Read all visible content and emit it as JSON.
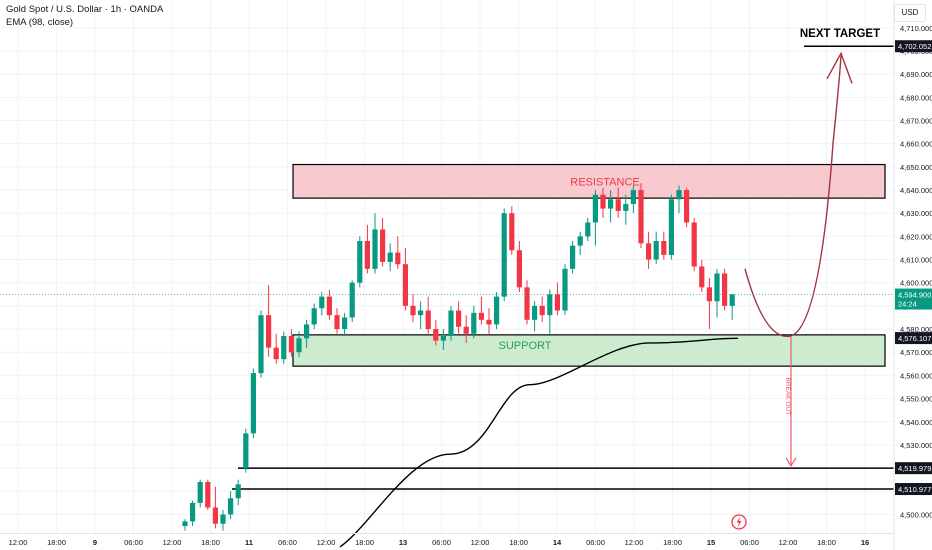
{
  "header": {
    "title": "Gold Spot / U.S. Dollar · 1h · OANDA",
    "indicator": "EMA (98, close)",
    "currency": "USD"
  },
  "colors": {
    "up": "#089981",
    "down": "#f23645",
    "resistance_fill": "#f8c9cf",
    "support_fill": "#cdeccf",
    "resistance_text": "#f23645",
    "support_text": "#2e9c52",
    "arrow": "#a3323d",
    "breakout_arrow": "#ef5b6b",
    "label_bg": "#131722"
  },
  "chart_data": {
    "type": "candlestick",
    "y_axis": {
      "ticks": [
        4500,
        4510,
        4520,
        4530,
        4540,
        4550,
        4560,
        4570,
        4580,
        4590,
        4600,
        4610,
        4620,
        4630,
        4640,
        4650,
        4660,
        4670,
        4680,
        4690,
        4700,
        4710
      ],
      "tick_labels": [
        "4,500.000",
        "4,510.000",
        "4,520.000",
        "4,530.000",
        "4,540.000",
        "4,550.000",
        "4,560.000",
        "4,570.000",
        "4,580.000",
        "4,590.000",
        "4,600.000",
        "4,610.000",
        "4,620.000",
        "4,630.000",
        "4,640.000",
        "4,650.000",
        "4,660.000",
        "4,670.000",
        "4,680.000",
        "4,690.000",
        "4,700.000",
        "4,710.000"
      ],
      "range": [
        4492,
        4722
      ]
    },
    "x_axis": {
      "tick_labels": [
        "12:00",
        "18:00",
        "9",
        "06:00",
        "12:00",
        "18:00",
        "11",
        "06:00",
        "12:00",
        "18:00",
        "13",
        "06:00",
        "12:00",
        "18:00",
        "14",
        "06:00",
        "12:00",
        "18:00",
        "15",
        "06:00",
        "12:00",
        "18:00",
        "16"
      ],
      "bold_labels": [
        "9",
        "11",
        "13",
        "14",
        "15",
        "16"
      ]
    },
    "candles": [
      [
        4495,
        4498,
        4493,
        4497
      ],
      [
        4497,
        4506,
        4495,
        4505
      ],
      [
        4505,
        4515,
        4503,
        4514
      ],
      [
        4514,
        4515,
        4502,
        4503
      ],
      [
        4503,
        4512,
        4494,
        4496
      ],
      [
        4496,
        4502,
        4493,
        4500
      ],
      [
        4500,
        4510,
        4498,
        4507
      ],
      [
        4507,
        4515,
        4504,
        4513
      ],
      [
        4520,
        4537,
        4518,
        4535
      ],
      [
        4535,
        4563,
        4533,
        4561
      ],
      [
        4561,
        4588,
        4559,
        4586
      ],
      [
        4586,
        4599,
        4568,
        4572
      ],
      [
        4572,
        4578,
        4565,
        4567
      ],
      [
        4567,
        4579,
        4565,
        4577
      ],
      [
        4577,
        4580,
        4568,
        4570
      ],
      [
        4570,
        4579,
        4568,
        4576
      ],
      [
        4576,
        4584,
        4572,
        4582
      ],
      [
        4582,
        4591,
        4580,
        4589
      ],
      [
        4589,
        4596,
        4586,
        4594
      ],
      [
        4594,
        4597,
        4584,
        4586
      ],
      [
        4586,
        4589,
        4578,
        4580
      ],
      [
        4580,
        4587,
        4577,
        4585
      ],
      [
        4585,
        4601,
        4583,
        4600
      ],
      [
        4600,
        4620,
        4598,
        4618
      ],
      [
        4618,
        4625,
        4604,
        4606
      ],
      [
        4606,
        4630,
        4604,
        4623
      ],
      [
        4623,
        4628,
        4607,
        4609
      ],
      [
        4609,
        4617,
        4605,
        4613
      ],
      [
        4613,
        4620,
        4606,
        4608
      ],
      [
        4608,
        4615,
        4588,
        4590
      ],
      [
        4590,
        4595,
        4583,
        4586
      ],
      [
        4586,
        4592,
        4580,
        4588
      ],
      [
        4588,
        4594,
        4578,
        4580
      ],
      [
        4580,
        4584,
        4573,
        4575
      ],
      [
        4575,
        4580,
        4571,
        4577
      ],
      [
        4577,
        4590,
        4575,
        4588
      ],
      [
        4588,
        4592,
        4578,
        4581
      ],
      [
        4581,
        4586,
        4574,
        4578
      ],
      [
        4578,
        4590,
        4576,
        4587
      ],
      [
        4587,
        4594,
        4582,
        4584
      ],
      [
        4584,
        4589,
        4578,
        4582
      ],
      [
        4582,
        4596,
        4580,
        4594
      ],
      [
        4594,
        4632,
        4592,
        4630
      ],
      [
        4630,
        4633,
        4612,
        4614
      ],
      [
        4614,
        4618,
        4596,
        4598
      ],
      [
        4598,
        4601,
        4582,
        4584
      ],
      [
        4584,
        4592,
        4579,
        4590
      ],
      [
        4590,
        4594,
        4583,
        4586
      ],
      [
        4586,
        4597,
        4578,
        4595
      ],
      [
        4595,
        4600,
        4586,
        4588
      ],
      [
        4588,
        4608,
        4586,
        4606
      ],
      [
        4606,
        4618,
        4604,
        4616
      ],
      [
        4616,
        4622,
        4612,
        4620
      ],
      [
        4620,
        4628,
        4618,
        4626
      ],
      [
        4626,
        4640,
        4616,
        4638
      ],
      [
        4638,
        4641,
        4628,
        4632
      ],
      [
        4632,
        4640,
        4626,
        4636
      ],
      [
        4636,
        4641,
        4628,
        4631
      ],
      [
        4631,
        4638,
        4625,
        4634
      ],
      [
        4634,
        4642,
        4630,
        4640
      ],
      [
        4640,
        4643,
        4615,
        4617
      ],
      [
        4617,
        4622,
        4606,
        4610
      ],
      [
        4610,
        4622,
        4608,
        4618
      ],
      [
        4618,
        4622,
        4610,
        4612
      ],
      [
        4612,
        4638,
        4610,
        4636
      ],
      [
        4636,
        4642,
        4630,
        4640
      ],
      [
        4640,
        4641,
        4624,
        4626
      ],
      [
        4626,
        4628,
        4605,
        4607
      ],
      [
        4607,
        4610,
        4596,
        4598
      ],
      [
        4598,
        4602,
        4580,
        4592
      ],
      [
        4592,
        4606,
        4585,
        4604
      ],
      [
        4604,
        4606,
        4588,
        4590
      ],
      [
        4590,
        4595,
        4584,
        4595
      ]
    ],
    "ema": [
      [
        4495,
        4486
      ],
      [
        4526,
        4517
      ],
      [
        4556,
        4544
      ],
      [
        4574,
        4568
      ],
      [
        4576,
        4576
      ]
    ],
    "zones": {
      "resistance": {
        "label": "RESISTANCE",
        "low": 4636.5,
        "high": 4651
      },
      "support": {
        "label": "SUPPORT",
        "low": 4564,
        "high": 4577.5
      }
    },
    "levels": [
      {
        "label": "NEXT TARGET",
        "price": 4702.052,
        "price_label": "4,702.052"
      },
      {
        "price": 4519.979,
        "price_label": "4,519.979"
      },
      {
        "price": 4510.977,
        "price_label": "4,510.977"
      }
    ],
    "projection": {
      "bottom": 4577,
      "target": 4702,
      "breakout_label": "BREAK OUT",
      "breakout_target": 4521
    },
    "price_badges": [
      {
        "price": 4594.9,
        "label": "4,594.900",
        "sub": "24:24",
        "color": "#089981"
      },
      {
        "price": 4576.107,
        "label": "4,576.107",
        "color": "#131722"
      }
    ],
    "grid": true
  }
}
